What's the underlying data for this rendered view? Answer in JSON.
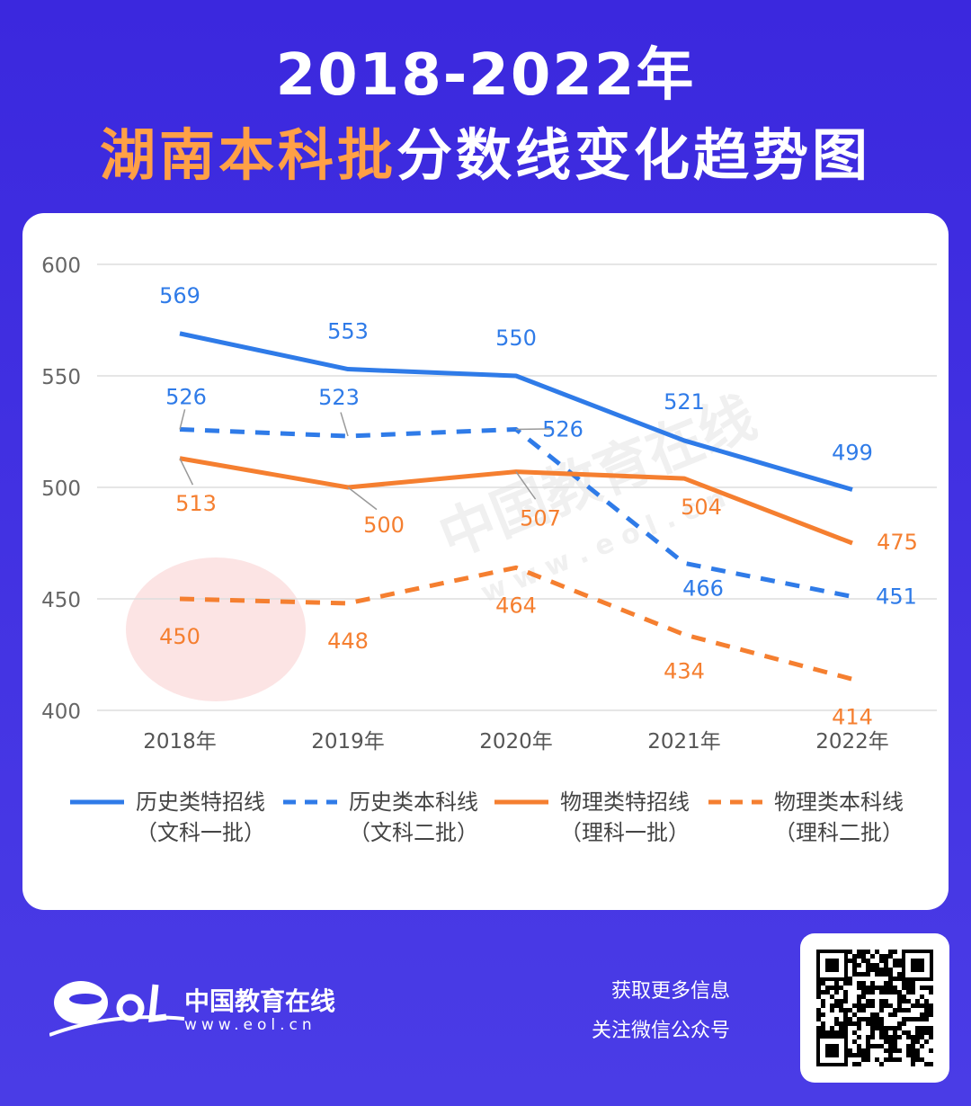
{
  "title": {
    "line1": "2018-2022年",
    "highlight": "湖南本科批",
    "rest": "分数线变化趋势图"
  },
  "chart_data": {
    "type": "line",
    "categories": [
      "2018年",
      "2019年",
      "2020年",
      "2021年",
      "2022年"
    ],
    "ylim": [
      400,
      600
    ],
    "yticks": [
      400,
      450,
      500,
      550,
      600
    ],
    "grid": true,
    "legend_position": "bottom",
    "series": [
      {
        "name": "历史类特招线",
        "sub": "（文科一批）",
        "values": [
          569,
          553,
          550,
          521,
          499
        ],
        "color": "#2f7be8",
        "dash": false
      },
      {
        "name": "历史类本科线",
        "sub": "（文科二批）",
        "values": [
          526,
          523,
          526,
          466,
          451
        ],
        "color": "#2f7be8",
        "dash": true
      },
      {
        "name": "物理类特招线",
        "sub": "（理科一批）",
        "values": [
          513,
          500,
          507,
          504,
          475
        ],
        "color": "#f57f30",
        "dash": false
      },
      {
        "name": "物理类本科线",
        "sub": "（理科二批）",
        "values": [
          450,
          448,
          464,
          434,
          414
        ],
        "color": "#f57f30",
        "dash": true
      }
    ]
  },
  "watermark": {
    "text": "中国教育在线",
    "url": "w w w . e o l . c n"
  },
  "footer": {
    "brand": "中国教育在线",
    "url": "www.eol.cn",
    "info1": "获取更多信息",
    "info2": "关注微信公众号"
  }
}
